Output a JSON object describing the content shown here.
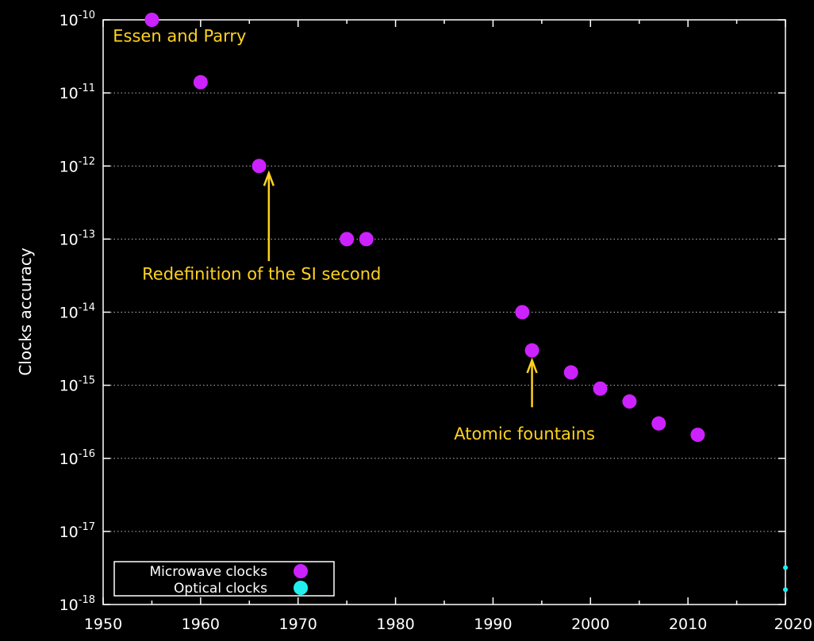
{
  "chart_data": {
    "type": "scatter",
    "title": "",
    "xlabel": "",
    "ylabel": "Clocks accuracy",
    "xlim": [
      1950,
      2020
    ],
    "ylim_exponent": [
      -18,
      -10
    ],
    "yscale": "log",
    "grid": "horizontal dotted",
    "legend_position": "bottom-left",
    "x_ticks": [
      "1950",
      "1960",
      "1970",
      "1980",
      "1990",
      "2000",
      "2010",
      "2020"
    ],
    "y_ticks": [
      {
        "base": "10",
        "exp": "-10",
        "value": -10
      },
      {
        "base": "10",
        "exp": "-11",
        "value": -11
      },
      {
        "base": "10",
        "exp": "-12",
        "value": -12
      },
      {
        "base": "10",
        "exp": "-13",
        "value": -13
      },
      {
        "base": "10",
        "exp": "-14",
        "value": -14
      },
      {
        "base": "10",
        "exp": "-15",
        "value": -15
      },
      {
        "base": "10",
        "exp": "-16",
        "value": -16
      },
      {
        "base": "10",
        "exp": "-17",
        "value": -17
      },
      {
        "base": "10",
        "exp": "-18",
        "value": -18
      }
    ],
    "series": [
      {
        "name": "Microwave clocks",
        "color": "#cc22ff",
        "points": [
          {
            "x": 1955,
            "y": 1e-10
          },
          {
            "x": 1960,
            "y": 1.4e-11
          },
          {
            "x": 1966,
            "y": 1e-12
          },
          {
            "x": 1975,
            "y": 1e-13
          },
          {
            "x": 1977,
            "y": 1e-13
          },
          {
            "x": 1993,
            "y": 1e-14
          },
          {
            "x": 1994,
            "y": 3e-15
          },
          {
            "x": 1998,
            "y": 1.5e-15
          },
          {
            "x": 2001,
            "y": 9e-16
          },
          {
            "x": 2004,
            "y": 6e-16
          },
          {
            "x": 2007,
            "y": 3e-16
          },
          {
            "x": 2011,
            "y": 2.1e-16
          }
        ]
      },
      {
        "name": "Optical clocks",
        "color": "#22eeee",
        "points": [
          {
            "x": 2020,
            "y": 3.2e-18
          },
          {
            "x": 2020,
            "y": 1.6e-18
          }
        ]
      }
    ],
    "annotations": [
      {
        "text": "Essen and Parry",
        "x": 1951,
        "y": 5e-11,
        "arrow": false
      },
      {
        "text": "Redefinition of the SI second",
        "x": 1954,
        "y": 2.8e-14,
        "arrow": true,
        "arrow_from_y": 5e-14,
        "arrow_to_y": 8e-13,
        "arrow_x": 1967
      },
      {
        "text": "Atomic fountains",
        "x": 1986,
        "y": 1.8e-16,
        "arrow": true,
        "arrow_from_y": 5e-16,
        "arrow_to_y": 2.2e-15,
        "arrow_x": 1994
      }
    ],
    "annotation_color": "#ffd21f"
  }
}
